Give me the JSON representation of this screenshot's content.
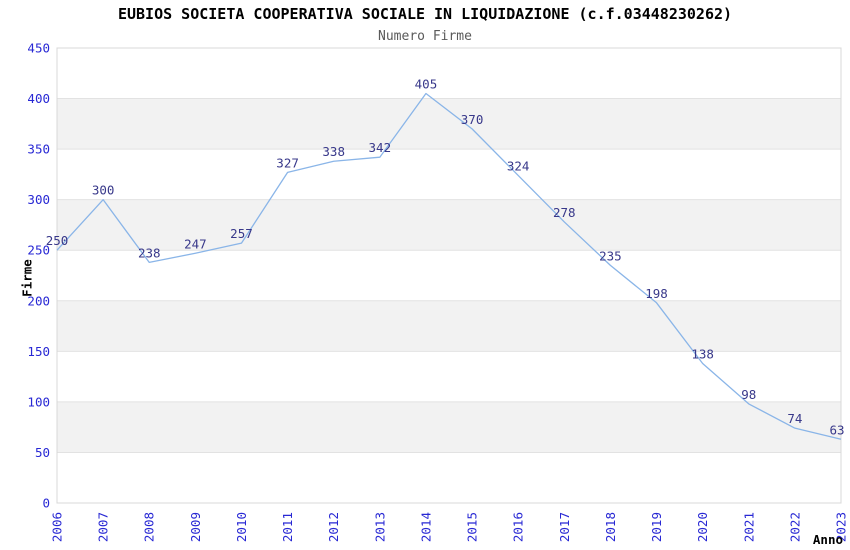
{
  "chart_data": {
    "type": "line",
    "title": "EUBIOS SOCIETA COOPERATIVA SOCIALE IN LIQUIDAZIONE (c.f.03448230262)",
    "subtitle": "Numero Firme",
    "xlabel": "Anno",
    "ylabel": "Firme",
    "categories": [
      "2006",
      "2007",
      "2008",
      "2009",
      "2010",
      "2011",
      "2012",
      "2013",
      "2014",
      "2015",
      "2016",
      "2017",
      "2018",
      "2019",
      "2020",
      "2021",
      "2022",
      "2023"
    ],
    "series": [
      {
        "name": "Numero Firme",
        "values": [
          250,
          300,
          238,
          247,
          257,
          327,
          338,
          342,
          405,
          370,
          324,
          278,
          235,
          198,
          138,
          98,
          74,
          63
        ]
      }
    ],
    "data_labels_shown": true,
    "ylim": [
      0,
      450
    ],
    "ytick_step": 50,
    "ytick_labels": [
      "0",
      "50",
      "100",
      "150",
      "200",
      "250",
      "300",
      "350",
      "400",
      "450"
    ],
    "grid": true,
    "alternating_bands": true,
    "legend": "none",
    "colors": {
      "line": "#8ab5e8",
      "tick_label": "#2828d4",
      "data_label": "#38388a",
      "band_fill": "#f2f2f2",
      "gridline": "#e2e2e2",
      "plot_border": "#d8d8d8",
      "title": "#000000",
      "subtitle": "#5a5a5a",
      "axis_title": "#000000",
      "background": "#ffffff"
    }
  }
}
